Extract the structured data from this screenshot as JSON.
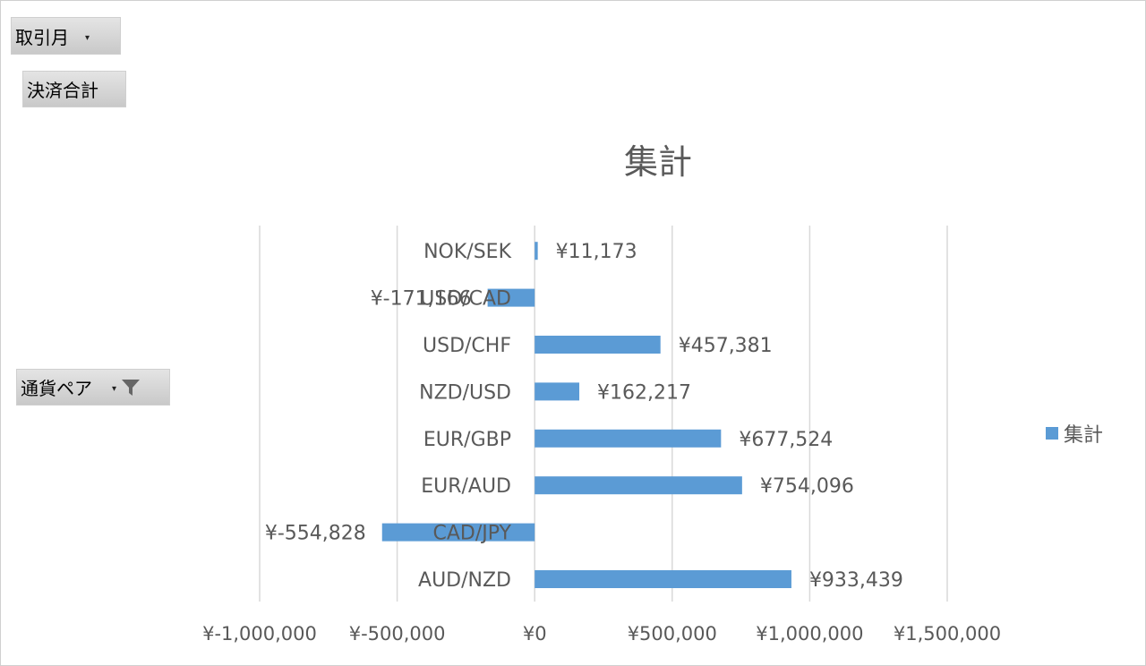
{
  "filters": {
    "month_field": "取引月",
    "values_field": "決済合計",
    "row_field": "通貨ペア"
  },
  "colors": {
    "bar": "#5b9bd5",
    "grid": "#d9d9d9",
    "text": "#595959"
  },
  "icons": {
    "dropdown": "dropdown-arrow-icon",
    "filter": "funnel-filter-icon"
  },
  "legend": {
    "label": "集計",
    "placement": "right"
  },
  "chart_data": {
    "type": "bar",
    "orientation": "horizontal",
    "title": "集計",
    "categories": [
      "NOK/SEK",
      "USD/CAD",
      "USD/CHF",
      "NZD/USD",
      "EUR/GBP",
      "EUR/AUD",
      "CAD/JPY",
      "AUD/NZD"
    ],
    "series": [
      {
        "name": "集計",
        "values": [
          11173,
          -171166,
          457381,
          162217,
          677524,
          754096,
          -554828,
          933439
        ],
        "data_labels": [
          "¥11,173",
          "¥-171,166",
          "¥457,381",
          "¥162,217",
          "¥677,524",
          "¥754,096",
          "¥-554,828",
          "¥933,439"
        ]
      }
    ],
    "xlim": [
      -1000000,
      1500000
    ],
    "x_ticks": [
      -1000000,
      -500000,
      0,
      500000,
      1000000,
      1500000
    ],
    "x_tick_labels": [
      "¥-1,000,000",
      "¥-500,000",
      "¥0",
      "¥500,000",
      "¥1,000,000",
      "¥1,500,000"
    ],
    "grid": true
  }
}
